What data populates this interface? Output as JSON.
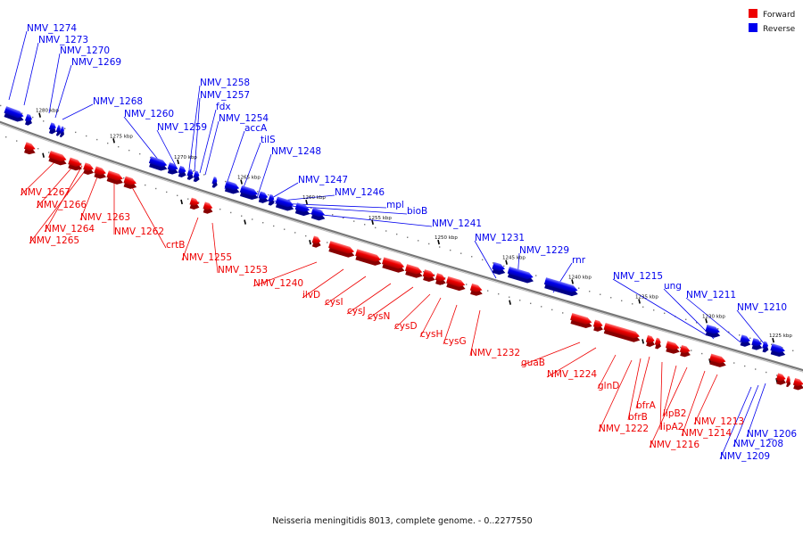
{
  "caption": "Neisseria meningitidis 8013, complete genome. - 0..2277550",
  "legend": [
    {
      "label": "Forward",
      "color": "#ee0000"
    },
    {
      "label": "Reverse",
      "color": "#0000ee"
    }
  ],
  "colors": {
    "forward": "#ee0000",
    "reverse": "#0000ee",
    "backbone": "#777777"
  },
  "ticks": [
    "1280 kbp",
    "1275 kbp",
    "1270 kbp",
    "1265 kbp",
    "1260 kbp",
    "1255 kbp",
    "1250 kbp",
    "1245 kbp",
    "1240 kbp",
    "1235 kbp",
    "1230 kbp",
    "1225 kbp"
  ],
  "reverse_genes": [
    "NMV_1274",
    "NMV_1273",
    "NMV_1270",
    "NMV_1269",
    "NMV_1268",
    "NMV_1260",
    "NMV_1258",
    "NMV_1257",
    "fdx",
    "NMV_1254",
    "NMV_1259",
    "accA",
    "tilS",
    "NMV_1248",
    "NMV_1247",
    "NMV_1246",
    "mpl",
    "bioB",
    "NMV_1241",
    "NMV_1231",
    "NMV_1229",
    "rnr",
    "NMV_1215",
    "ung",
    "NMV_1211",
    "NMV_1210",
    "NMV_1206",
    "NMV_1208",
    "NMV_1209"
  ],
  "forward_genes": [
    "NMV_1267",
    "NMV_1266",
    "NMV_1264",
    "NMV_1265",
    "NMV_1263",
    "NMV_1262",
    "crtB",
    "NMV_1255",
    "NMV_1253",
    "NMV_1240",
    "ilvD",
    "cysI",
    "cysJ",
    "cysN",
    "cysD",
    "cysH",
    "cysG",
    "NMV_1232",
    "guaB",
    "NMV_1224",
    "glnD",
    "bfrA",
    "bfrB",
    "NMV_1222",
    "lipA2",
    "lipB2",
    "NMV_1216",
    "NMV_1214",
    "NMV_1213"
  ]
}
